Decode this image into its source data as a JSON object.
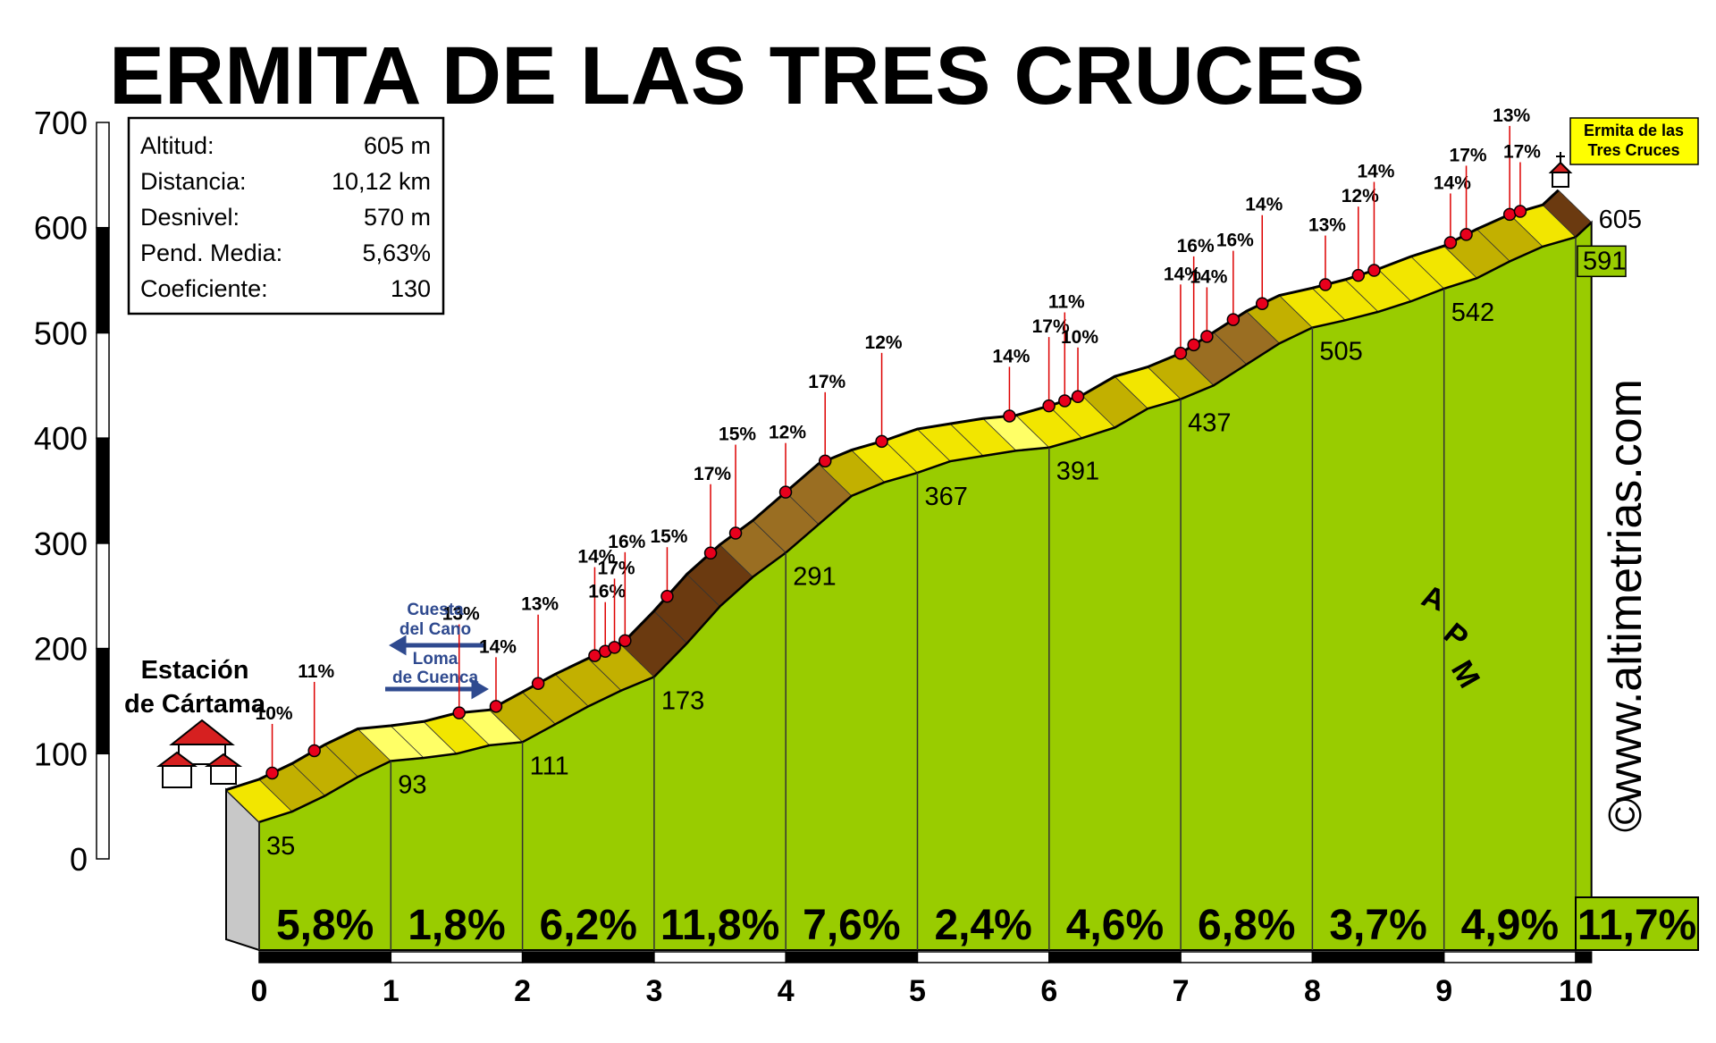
{
  "title": "ERMITA DE LAS TRES CRUCES",
  "info": {
    "rows": [
      [
        "Altitud:",
        "605 m"
      ],
      [
        "Distancia:",
        "10,12 km"
      ],
      [
        "Desnivel:",
        "570 m"
      ],
      [
        "Pend. Media:",
        "5,63%"
      ],
      [
        "Coeficiente:",
        "130"
      ]
    ]
  },
  "labels": {
    "start": [
      "Estación",
      "de Cártama"
    ],
    "summit": [
      "Ermita de las",
      "Tres Cruces"
    ],
    "cuesta": [
      "Cuesta",
      "del Cano"
    ],
    "loma": [
      "Loma",
      "de Cuenca"
    ],
    "website": "www.altimetrias.com",
    "copyright": "©",
    "logo": [
      "A",
      "P",
      "M"
    ]
  },
  "chart_data": {
    "type": "profile",
    "x": [
      0,
      0.25,
      0.5,
      0.75,
      1,
      1.25,
      1.5,
      1.75,
      2,
      2.25,
      2.5,
      2.75,
      3,
      3.25,
      3.5,
      3.75,
      4,
      4.25,
      4.5,
      4.75,
      5,
      5.25,
      5.5,
      5.75,
      6,
      6.25,
      6.5,
      6.75,
      7,
      7.25,
      7.5,
      7.75,
      8,
      8.25,
      8.5,
      8.75,
      9,
      9.25,
      9.5,
      9.75,
      10,
      10.12
    ],
    "values": [
      35,
      45,
      60,
      78,
      93,
      96,
      100,
      108,
      111,
      128,
      145,
      160,
      173,
      205,
      240,
      268,
      291,
      318,
      345,
      358,
      367,
      378,
      383,
      388,
      391,
      400,
      410,
      428,
      437,
      450,
      470,
      490,
      505,
      512,
      520,
      530,
      542,
      552,
      568,
      582,
      591,
      605
    ],
    "xlim": [
      0,
      10.12
    ],
    "ylim": [
      0,
      700
    ],
    "xticks": [
      0,
      1,
      2,
      3,
      4,
      5,
      6,
      7,
      8,
      9,
      10
    ],
    "yticks": [
      0,
      100,
      200,
      300,
      400,
      500,
      600,
      700
    ],
    "km_altitudes": [
      35,
      93,
      111,
      173,
      291,
      367,
      391,
      437,
      505,
      542,
      591
    ],
    "summit_altitude": 605,
    "segments": {
      "values": [
        5.8,
        1.8,
        6.2,
        11.8,
        7.6,
        2.4,
        4.6,
        6.8,
        3.7,
        4.9,
        11.7
      ],
      "value_labels": [
        "5,8%",
        "1,8%",
        "6,2%",
        "11,8%",
        "7,6%",
        "2,4%",
        "4,6%",
        "6,8%",
        "3,7%",
        "4,9%",
        "11,7%"
      ]
    },
    "steep_points": {
      "x": [
        0.35,
        0.67,
        1.77,
        2.05,
        2.37,
        2.8,
        2.88,
        2.95,
        3.03,
        3.35,
        3.68,
        3.87,
        4.25,
        4.55,
        4.98,
        5.95,
        6.25,
        6.37,
        6.47,
        7.25,
        7.35,
        7.45,
        7.65,
        7.87,
        8.35,
        8.6,
        8.72,
        9.3,
        9.42,
        9.75,
        9.83
      ],
      "values": [
        10,
        11,
        13,
        14,
        13,
        14,
        16,
        17,
        16,
        15,
        17,
        15,
        12,
        17,
        12,
        14,
        17,
        11,
        10,
        14,
        16,
        14,
        16,
        14,
        13,
        12,
        14,
        14,
        17,
        13,
        17
      ],
      "value_labels": [
        "10%",
        "11%",
        "13%",
        "14%",
        "13%",
        "14%",
        "16%",
        "17%",
        "16%",
        "15%",
        "17%",
        "15%",
        "12%",
        "17%",
        "12%",
        "14%",
        "17%",
        "11%",
        "10%",
        "14%",
        "16%",
        "14%",
        "16%",
        "14%",
        "13%",
        "12%",
        "14%",
        "14%",
        "17%",
        "13%",
        "17%"
      ]
    },
    "colors": {
      "area": "#99cc00",
      "side": "#c8c8c8",
      "dot": "#e8001c",
      "label_box": "#ffff00"
    }
  }
}
